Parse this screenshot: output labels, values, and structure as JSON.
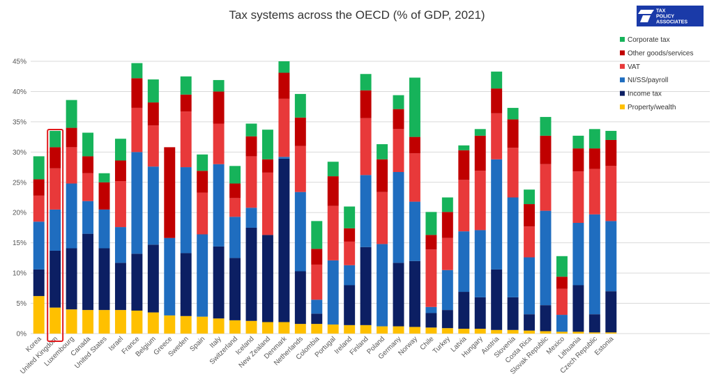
{
  "logo": {
    "line1": "TAX",
    "line2": "POLICY",
    "line3": "ASSOCIATES",
    "color": "#1a3aa8"
  },
  "highlight": {
    "category": "United Kingdom",
    "color": "#e0191b"
  },
  "chart_data": {
    "type": "bar",
    "stacked": true,
    "title": "Tax systems across the OECD (% of GDP, 2021)",
    "xlabel": "",
    "ylabel": "",
    "ylim": [
      0,
      45
    ],
    "yticks": [
      0,
      5,
      10,
      15,
      20,
      25,
      30,
      35,
      40,
      45
    ],
    "ytick_labels": [
      "0%",
      "5%",
      "10%",
      "15%",
      "20%",
      "25%",
      "30%",
      "35%",
      "40%",
      "45%"
    ],
    "grid": true,
    "legend_position": "top-right",
    "categories": [
      "Korea",
      "United Kingdom",
      "Luxembourg",
      "Canada",
      "United States",
      "Israel",
      "France",
      "Belgium",
      "Greece",
      "Sweden",
      "Spain",
      "Italy",
      "Switzerland",
      "Iceland",
      "New Zealand",
      "Denmark",
      "Netherlands",
      "Colombia",
      "Portugal",
      "Ireland",
      "Finland",
      "Poland",
      "Germany",
      "Norway",
      "Chile",
      "Turkey",
      "Latvia",
      "Hungary",
      "Austria",
      "Slovenia",
      "Costa Rica",
      "Slovak Republic",
      "Mexico",
      "Lithuania",
      "Czech Republic",
      "Estonia"
    ],
    "series": [
      {
        "name": "Property/wealth",
        "color": "#ffc000",
        "values": [
          6.2,
          4.3,
          4.0,
          3.9,
          3.9,
          3.9,
          3.8,
          3.5,
          3.0,
          2.9,
          2.8,
          2.5,
          2.2,
          2.1,
          1.9,
          1.9,
          1.6,
          1.6,
          1.5,
          1.4,
          1.4,
          1.2,
          1.2,
          1.1,
          1.0,
          0.9,
          0.8,
          0.8,
          0.6,
          0.6,
          0.5,
          0.4,
          0.3,
          0.3,
          0.2,
          0.2
        ]
      },
      {
        "name": "Income tax",
        "color": "#0c1f63",
        "values": [
          4.4,
          9.4,
          10.1,
          12.6,
          10.2,
          7.8,
          9.4,
          11.2,
          0.0,
          10.4,
          0.0,
          11.9,
          10.3,
          15.4,
          14.4,
          27.0,
          8.7,
          1.7,
          0.0,
          6.6,
          12.9,
          0.0,
          10.5,
          10.9,
          2.4,
          3.0,
          6.1,
          5.2,
          10.0,
          5.4,
          2.7,
          4.3,
          0.0,
          7.7,
          3.0,
          6.8
        ]
      },
      {
        "name": "NI/SS/payroll",
        "color": "#1f6dbf",
        "values": [
          7.9,
          6.8,
          10.7,
          5.4,
          6.4,
          5.9,
          16.8,
          12.9,
          12.8,
          14.2,
          13.6,
          13.6,
          6.8,
          3.3,
          0.0,
          0.3,
          13.1,
          2.3,
          10.6,
          3.3,
          11.9,
          13.6,
          15.0,
          9.8,
          1.0,
          6.6,
          10.0,
          11.1,
          18.2,
          16.5,
          9.4,
          15.6,
          2.8,
          10.3,
          16.5,
          11.6
        ]
      },
      {
        "name": "VAT",
        "color": "#e8393a",
        "values": [
          4.3,
          6.8,
          6.0,
          4.6,
          0.0,
          7.6,
          7.3,
          6.8,
          0.0,
          9.2,
          6.9,
          6.7,
          3.1,
          8.5,
          10.3,
          9.6,
          7.6,
          5.8,
          9.0,
          3.9,
          9.4,
          8.6,
          7.1,
          8.0,
          9.5,
          5.3,
          8.5,
          9.8,
          7.6,
          8.2,
          5.1,
          7.7,
          4.3,
          8.5,
          7.5,
          9.1
        ]
      },
      {
        "name": "Other goods/services",
        "color": "#c00000",
        "values": [
          2.7,
          3.5,
          3.2,
          2.8,
          4.5,
          3.4,
          4.9,
          3.8,
          15.0,
          2.8,
          3.6,
          5.3,
          2.4,
          3.3,
          2.2,
          4.3,
          4.7,
          2.6,
          4.9,
          2.2,
          4.6,
          5.4,
          3.3,
          2.7,
          2.4,
          4.3,
          4.9,
          5.8,
          4.1,
          4.7,
          3.7,
          4.7,
          2.0,
          3.8,
          3.4,
          4.3
        ]
      },
      {
        "name": "Corporate tax",
        "color": "#16b35a",
        "values": [
          3.8,
          2.7,
          4.6,
          3.9,
          1.5,
          3.6,
          2.5,
          3.8,
          0.0,
          3.0,
          2.7,
          1.9,
          2.9,
          2.1,
          4.9,
          1.9,
          3.9,
          4.6,
          2.4,
          3.6,
          2.7,
          2.5,
          2.3,
          9.8,
          3.8,
          2.4,
          0.8,
          1.1,
          2.8,
          1.9,
          2.4,
          3.1,
          3.4,
          2.1,
          3.2,
          1.5
        ]
      }
    ]
  }
}
